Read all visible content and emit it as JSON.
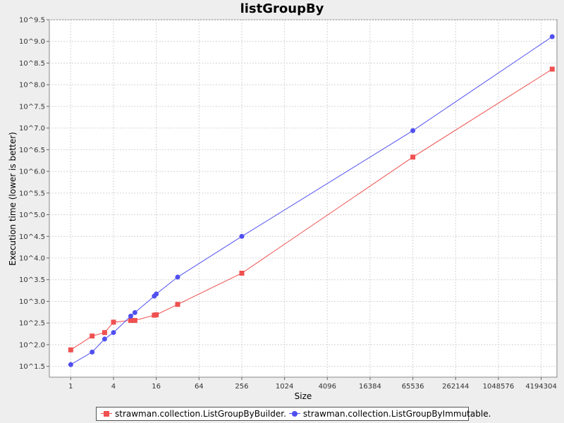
{
  "chart_data": {
    "type": "line",
    "title": "listGroupBy",
    "xlabel": "Size",
    "ylabel": "Execution time (lower is better)",
    "x_scale": "log2",
    "y_scale": "log10",
    "xlim": [
      0.5,
      7000000
    ],
    "ylim": [
      1.25,
      9.5
    ],
    "x_ticks": [
      1,
      4,
      16,
      64,
      256,
      1024,
      4096,
      16384,
      65536,
      262144,
      1048576,
      4194304
    ],
    "x_tick_labels": [
      "1",
      "4",
      "16",
      "64",
      "256",
      "1024",
      "4096",
      "16384",
      "65536",
      "262144",
      "1048576",
      "4194304"
    ],
    "y_ticks": [
      1.5,
      2.0,
      2.5,
      3.0,
      3.5,
      4.0,
      4.5,
      5.0,
      5.5,
      6.0,
      6.5,
      7.0,
      7.5,
      8.0,
      8.5,
      9.0,
      9.5
    ],
    "y_tick_labels": [
      "10^1.5",
      "10^2.0",
      "10^2.5",
      "10^3.0",
      "10^3.5",
      "10^4.0",
      "10^4.5",
      "10^5.0",
      "10^5.5",
      "10^6.0",
      "10^6.5",
      "10^7.0",
      "10^7.5",
      "10^8.0",
      "10^8.5",
      "10^9.0",
      "10^9.5"
    ],
    "grid": true,
    "legend_position": "bottom",
    "series": [
      {
        "name": "strawman.collection.ListGroupByBuilder.",
        "color": "#ef5050",
        "marker": "square",
        "x": [
          1,
          2,
          3,
          4,
          7,
          8,
          15,
          16,
          32,
          256,
          65536,
          6000000
        ],
        "y": [
          1.88,
          2.2,
          2.28,
          2.52,
          2.56,
          2.56,
          2.68,
          2.69,
          2.93,
          3.65,
          6.33,
          8.36
        ]
      },
      {
        "name": "strawman.collection.ListGroupByImmutable.",
        "color": "#5050ef",
        "marker": "circle",
        "x": [
          1,
          2,
          3,
          4,
          7,
          8,
          15,
          16,
          32,
          256,
          65536,
          6000000
        ],
        "y": [
          1.54,
          1.83,
          2.13,
          2.28,
          2.66,
          2.74,
          3.12,
          3.17,
          3.56,
          4.5,
          6.94,
          9.11
        ]
      }
    ]
  }
}
